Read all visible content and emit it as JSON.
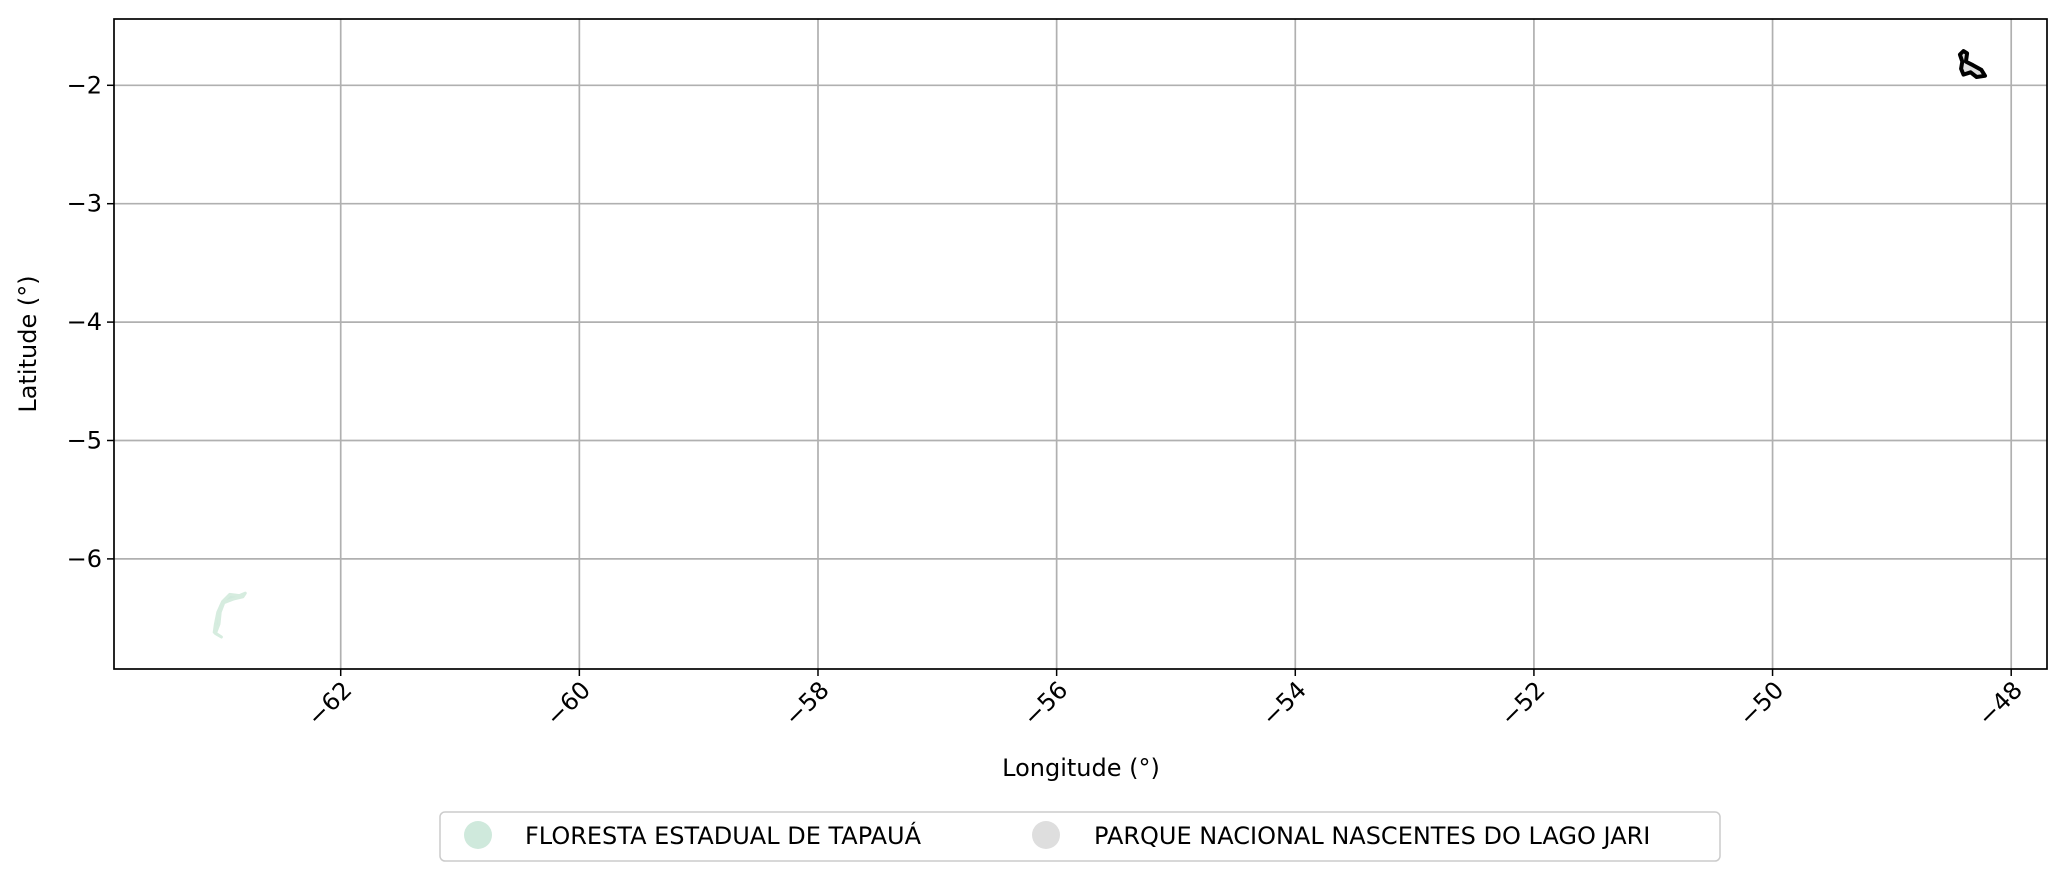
{
  "chart_data": {
    "type": "map",
    "title": "",
    "xlabel": "Longitude (°)",
    "ylabel": "Latitude (°)",
    "xlim": [
      -63.9,
      -47.7
    ],
    "ylim": [
      -6.93,
      -1.44
    ],
    "xticks": [
      -62,
      -60,
      -58,
      -56,
      -54,
      -52,
      -50,
      -48
    ],
    "xtick_labels": [
      "−62",
      "−60",
      "−58",
      "−56",
      "−54",
      "−52",
      "−50",
      "−48"
    ],
    "yticks": [
      -2,
      -3,
      -4,
      -5,
      -6
    ],
    "ytick_labels": [
      "−2",
      "−3",
      "−4",
      "−5",
      "−6"
    ],
    "grid": true,
    "legend_position": "bottom-center",
    "series": [
      {
        "name": "FLORESTA ESTADUAL DE TAPAUÁ",
        "color": "#cfe9dc",
        "outline": "#d6ecdf",
        "polygon": [
          [
            -62.93,
            -6.3
          ],
          [
            -62.85,
            -6.31
          ],
          [
            -62.8,
            -6.29
          ],
          [
            -62.82,
            -6.32
          ],
          [
            -62.9,
            -6.34
          ],
          [
            -62.98,
            -6.37
          ],
          [
            -63.01,
            -6.45
          ],
          [
            -63.02,
            -6.55
          ],
          [
            -63.05,
            -6.63
          ],
          [
            -63.0,
            -6.66
          ],
          [
            -63.06,
            -6.62
          ],
          [
            -63.05,
            -6.55
          ],
          [
            -63.03,
            -6.45
          ],
          [
            -62.99,
            -6.36
          ],
          [
            -62.93,
            -6.3
          ]
        ]
      },
      {
        "name": "PARQUE NACIONAL NASCENTES DO LAGO JARI",
        "color": "#dedede",
        "outline": "#000000",
        "polygon": [
          [
            -48.4,
            -1.71
          ],
          [
            -48.37,
            -1.73
          ],
          [
            -48.38,
            -1.8
          ],
          [
            -48.32,
            -1.83
          ],
          [
            -48.25,
            -1.87
          ],
          [
            -48.22,
            -1.92
          ],
          [
            -48.29,
            -1.93
          ],
          [
            -48.34,
            -1.89
          ],
          [
            -48.4,
            -1.91
          ],
          [
            -48.42,
            -1.86
          ],
          [
            -48.41,
            -1.8
          ],
          [
            -48.43,
            -1.74
          ],
          [
            -48.4,
            -1.71
          ]
        ]
      }
    ]
  }
}
